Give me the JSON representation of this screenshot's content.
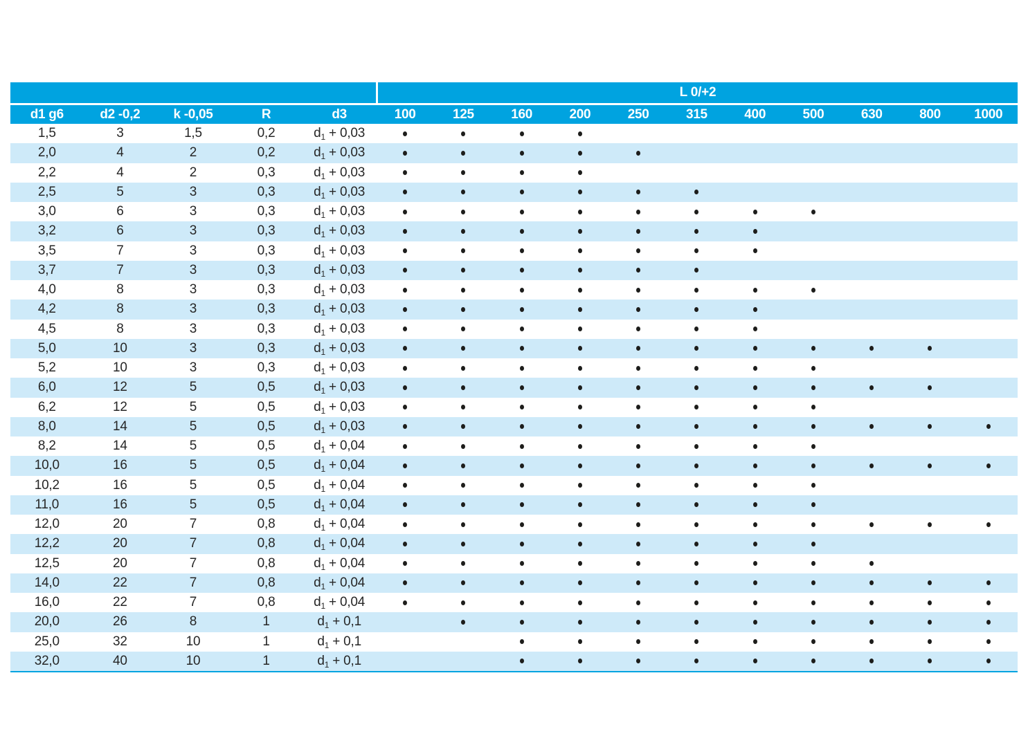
{
  "table": {
    "group_header": "L 0/+2",
    "spec_headers": [
      "d1 g6",
      "d2 -0,2",
      "k -0,05",
      "R",
      "d3"
    ],
    "length_headers": [
      "100",
      "125",
      "160",
      "200",
      "250",
      "315",
      "400",
      "500",
      "630",
      "800",
      "1000"
    ],
    "d3_base": "d",
    "d3_sub": "1",
    "rows": [
      {
        "d1": "1,5",
        "d2": "3",
        "k": "1,5",
        "r": "0,2",
        "d3_tail": "+ 0,03",
        "dots": [
          1,
          1,
          1,
          1,
          0,
          0,
          0,
          0,
          0,
          0,
          0
        ]
      },
      {
        "d1": "2,0",
        "d2": "4",
        "k": "2",
        "r": "0,2",
        "d3_tail": "+ 0,03",
        "dots": [
          1,
          1,
          1,
          1,
          1,
          0,
          0,
          0,
          0,
          0,
          0
        ]
      },
      {
        "d1": "2,2",
        "d2": "4",
        "k": "2",
        "r": "0,3",
        "d3_tail": "+ 0,03",
        "dots": [
          1,
          1,
          1,
          1,
          0,
          0,
          0,
          0,
          0,
          0,
          0
        ]
      },
      {
        "d1": "2,5",
        "d2": "5",
        "k": "3",
        "r": "0,3",
        "d3_tail": "+ 0,03",
        "dots": [
          1,
          1,
          1,
          1,
          1,
          1,
          0,
          0,
          0,
          0,
          0
        ]
      },
      {
        "d1": "3,0",
        "d2": "6",
        "k": "3",
        "r": "0,3",
        "d3_tail": "+ 0,03",
        "dots": [
          1,
          1,
          1,
          1,
          1,
          1,
          1,
          1,
          0,
          0,
          0
        ]
      },
      {
        "d1": "3,2",
        "d2": "6",
        "k": "3",
        "r": "0,3",
        "d3_tail": "+ 0,03",
        "dots": [
          1,
          1,
          1,
          1,
          1,
          1,
          1,
          0,
          0,
          0,
          0
        ]
      },
      {
        "d1": "3,5",
        "d2": "7",
        "k": "3",
        "r": "0,3",
        "d3_tail": "+ 0,03",
        "dots": [
          1,
          1,
          1,
          1,
          1,
          1,
          1,
          0,
          0,
          0,
          0
        ]
      },
      {
        "d1": "3,7",
        "d2": "7",
        "k": "3",
        "r": "0,3",
        "d3_tail": "+ 0,03",
        "dots": [
          1,
          1,
          1,
          1,
          1,
          1,
          0,
          0,
          0,
          0,
          0
        ]
      },
      {
        "d1": "4,0",
        "d2": "8",
        "k": "3",
        "r": "0,3",
        "d3_tail": "+ 0,03",
        "dots": [
          1,
          1,
          1,
          1,
          1,
          1,
          1,
          1,
          0,
          0,
          0
        ]
      },
      {
        "d1": "4,2",
        "d2": "8",
        "k": "3",
        "r": "0,3",
        "d3_tail": "+ 0,03",
        "dots": [
          1,
          1,
          1,
          1,
          1,
          1,
          1,
          0,
          0,
          0,
          0
        ]
      },
      {
        "d1": "4,5",
        "d2": "8",
        "k": "3",
        "r": "0,3",
        "d3_tail": "+ 0,03",
        "dots": [
          1,
          1,
          1,
          1,
          1,
          1,
          1,
          0,
          0,
          0,
          0
        ]
      },
      {
        "d1": "5,0",
        "d2": "10",
        "k": "3",
        "r": "0,3",
        "d3_tail": "+ 0,03",
        "dots": [
          1,
          1,
          1,
          1,
          1,
          1,
          1,
          1,
          1,
          1,
          0
        ]
      },
      {
        "d1": "5,2",
        "d2": "10",
        "k": "3",
        "r": "0,3",
        "d3_tail": "+ 0,03",
        "dots": [
          1,
          1,
          1,
          1,
          1,
          1,
          1,
          1,
          0,
          0,
          0
        ]
      },
      {
        "d1": "6,0",
        "d2": "12",
        "k": "5",
        "r": "0,5",
        "d3_tail": "+ 0,03",
        "dots": [
          1,
          1,
          1,
          1,
          1,
          1,
          1,
          1,
          1,
          1,
          0
        ]
      },
      {
        "d1": "6,2",
        "d2": "12",
        "k": "5",
        "r": "0,5",
        "d3_tail": "+ 0,03",
        "dots": [
          1,
          1,
          1,
          1,
          1,
          1,
          1,
          1,
          0,
          0,
          0
        ]
      },
      {
        "d1": "8,0",
        "d2": "14",
        "k": "5",
        "r": "0,5",
        "d3_tail": "+ 0,03",
        "dots": [
          1,
          1,
          1,
          1,
          1,
          1,
          1,
          1,
          1,
          1,
          1
        ]
      },
      {
        "d1": "8,2",
        "d2": "14",
        "k": "5",
        "r": "0,5",
        "d3_tail": "+ 0,04",
        "dots": [
          1,
          1,
          1,
          1,
          1,
          1,
          1,
          1,
          0,
          0,
          0
        ]
      },
      {
        "d1": "10,0",
        "d2": "16",
        "k": "5",
        "r": "0,5",
        "d3_tail": "+ 0,04",
        "dots": [
          1,
          1,
          1,
          1,
          1,
          1,
          1,
          1,
          1,
          1,
          1
        ]
      },
      {
        "d1": "10,2",
        "d2": "16",
        "k": "5",
        "r": "0,5",
        "d3_tail": "+ 0,04",
        "dots": [
          1,
          1,
          1,
          1,
          1,
          1,
          1,
          1,
          0,
          0,
          0
        ]
      },
      {
        "d1": "11,0",
        "d2": "16",
        "k": "5",
        "r": "0,5",
        "d3_tail": "+ 0,04",
        "dots": [
          1,
          1,
          1,
          1,
          1,
          1,
          1,
          1,
          0,
          0,
          0
        ]
      },
      {
        "d1": "12,0",
        "d2": "20",
        "k": "7",
        "r": "0,8",
        "d3_tail": "+ 0,04",
        "dots": [
          1,
          1,
          1,
          1,
          1,
          1,
          1,
          1,
          1,
          1,
          1
        ]
      },
      {
        "d1": "12,2",
        "d2": "20",
        "k": "7",
        "r": "0,8",
        "d3_tail": "+ 0,04",
        "dots": [
          1,
          1,
          1,
          1,
          1,
          1,
          1,
          1,
          0,
          0,
          0
        ]
      },
      {
        "d1": "12,5",
        "d2": "20",
        "k": "7",
        "r": "0,8",
        "d3_tail": "+ 0,04",
        "dots": [
          1,
          1,
          1,
          1,
          1,
          1,
          1,
          1,
          1,
          0,
          0
        ]
      },
      {
        "d1": "14,0",
        "d2": "22",
        "k": "7",
        "r": "0,8",
        "d3_tail": "+ 0,04",
        "dots": [
          1,
          1,
          1,
          1,
          1,
          1,
          1,
          1,
          1,
          1,
          1
        ]
      },
      {
        "d1": "16,0",
        "d2": "22",
        "k": "7",
        "r": "0,8",
        "d3_tail": "+ 0,04",
        "dots": [
          1,
          1,
          1,
          1,
          1,
          1,
          1,
          1,
          1,
          1,
          1
        ]
      },
      {
        "d1": "20,0",
        "d2": "26",
        "k": "8",
        "r": "1",
        "d3_tail": "+ 0,1",
        "dots": [
          0,
          1,
          1,
          1,
          1,
          1,
          1,
          1,
          1,
          1,
          1
        ]
      },
      {
        "d1": "25,0",
        "d2": "32",
        "k": "10",
        "r": "1",
        "d3_tail": "+ 0,1",
        "dots": [
          0,
          0,
          1,
          1,
          1,
          1,
          1,
          1,
          1,
          1,
          1
        ]
      },
      {
        "d1": "32,0",
        "d2": "40",
        "k": "10",
        "r": "1",
        "d3_tail": "+ 0,1",
        "dots": [
          0,
          0,
          1,
          1,
          1,
          1,
          1,
          1,
          1,
          1,
          1
        ]
      }
    ]
  },
  "colors": {
    "header_cyan": "#00A3E0",
    "stripe_blue": "#CEEAF9",
    "text": "#262626",
    "dot": "#1D1D1B"
  }
}
